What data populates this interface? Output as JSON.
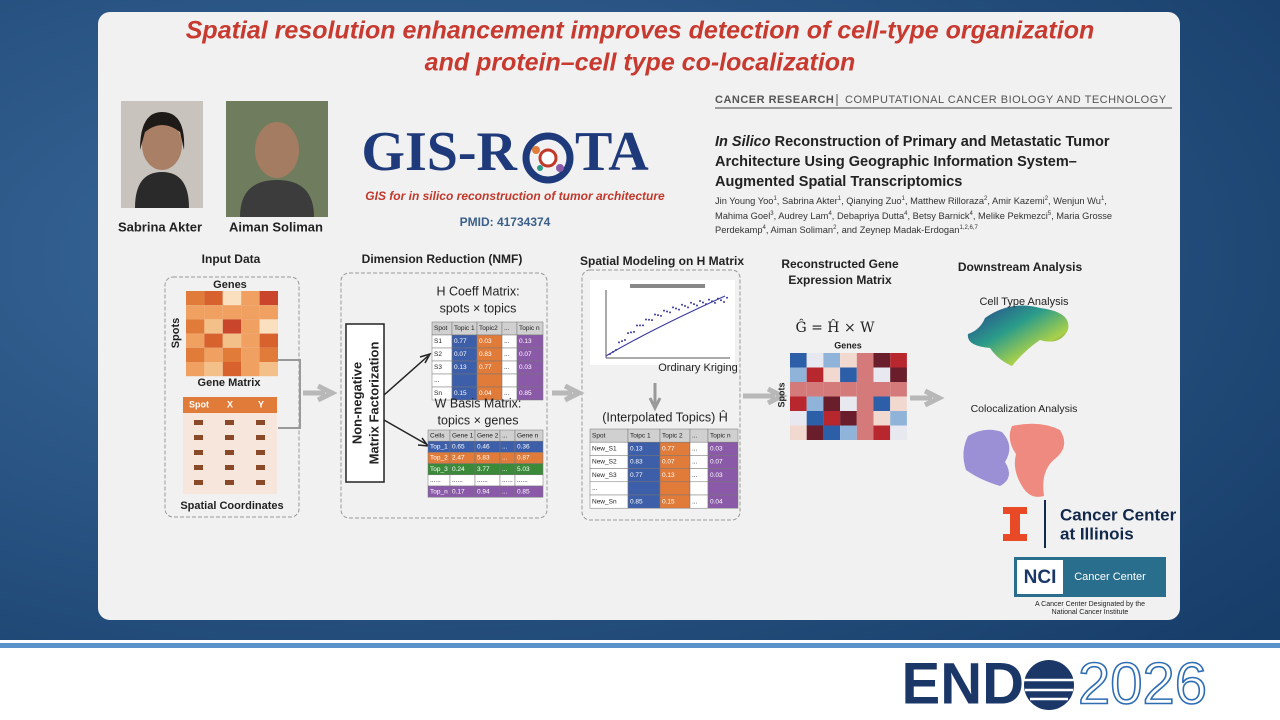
{
  "slide": {
    "title_line1": "Spatial resolution enhancement improves detection of cell-type organization",
    "title_line2": "and protein–cell type co-localization",
    "people": [
      "Sabrina Akter",
      "Aiman Soliman"
    ],
    "logo": {
      "name_left": "GIS-R",
      "name_right": "TA",
      "tagline": "GIS for in silico reconstruction of tumor architecture",
      "pmid": "PMID: 41734374"
    },
    "paper": {
      "journal": "CANCER RESEARCH",
      "section": "COMPUTATIONAL CANCER BIOLOGY AND TECHNOLOGY",
      "title_italic": "In Silico",
      "title_rest": "Reconstruction of Primary and Metastatic Tumor Architecture Using Geographic Information System–Augmented Spatial Transcriptomics",
      "authors": [
        {
          "name": "Jin Young Yoo",
          "sup": "1"
        },
        {
          "name": "Sabrina Akter",
          "sup": "1"
        },
        {
          "name": "Qianying Zuo",
          "sup": "1"
        },
        {
          "name": "Matthew Rilloraza",
          "sup": "2"
        },
        {
          "name": "Amir Kazemi",
          "sup": "2"
        },
        {
          "name": "Wenjun Wu",
          "sup": "1"
        },
        {
          "name": "Mahima Goel",
          "sup": "3"
        },
        {
          "name": "Audrey Lam",
          "sup": "4"
        },
        {
          "name": "Debapriya Dutta",
          "sup": "4"
        },
        {
          "name": "Betsy Barnick",
          "sup": "4"
        },
        {
          "name": "Melike Pekmezci",
          "sup": "5"
        },
        {
          "name": "Maria Grosse Perdekamp",
          "sup": "4"
        },
        {
          "name": "Aiman Soliman",
          "sup": "2"
        },
        {
          "name": "and Zeynep Madak-Erdogan",
          "sup": "1,2,6,7"
        }
      ]
    },
    "input": {
      "title": "Input  Data",
      "genes": "Genes",
      "spots": "Spots",
      "matrix": "Gene Matrix",
      "coord_header": [
        "Spot",
        "X",
        "Y"
      ],
      "coords": "Spatial Coordinates"
    },
    "nmf": {
      "title": "Dimension Reduction (NMF)",
      "box_line1": "Non-negative",
      "box_line2": "Matrix Factorization",
      "h_title": "H Coeff Matrix:",
      "h_sub": "spots × topics",
      "h_table": [
        [
          "Spot",
          "Topic 1",
          "Topic2",
          "...",
          "Topic n"
        ],
        [
          "S1",
          "0.77",
          "0.03",
          "...",
          "0.13"
        ],
        [
          "S2",
          "0.07",
          "0.83",
          "...",
          "0.07"
        ],
        [
          "S3",
          "0.13",
          "0.77",
          "...",
          "0.03"
        ],
        [
          "...",
          null,
          null,
          null,
          null
        ],
        [
          "Sn",
          "0.15",
          "0.04",
          "...",
          "0.85"
        ]
      ],
      "w_title": "W Basis Matrix:",
      "w_sub": "topics × genes",
      "w_table": [
        [
          "Cells",
          "Gene 1",
          "Gene 2",
          "...",
          "Gene n"
        ],
        [
          "Top_1",
          "0.65",
          "0.46",
          "...",
          "0.36"
        ],
        [
          "Top_2",
          "2.47",
          "5.83",
          "...",
          "0.87"
        ],
        [
          "Top_3",
          "0.24",
          "3.77",
          "...",
          "5.03"
        ],
        [
          "......",
          "......",
          "......",
          "......",
          "......"
        ],
        [
          "Top_n",
          "0.17",
          "0.94",
          "...",
          "0.85"
        ]
      ]
    },
    "spatial": {
      "title": "Spatial Modeling on H Matrix",
      "kriging": "Ordinary Kriging",
      "interp": "(Interpolated Topics) Ĥ",
      "table": [
        [
          "Spot",
          "Toipc 1",
          "Topic 2",
          "...",
          "Topic n"
        ],
        [
          "New_S1",
          "0.13",
          "0.77",
          "...",
          "0.03"
        ],
        [
          "New_S2",
          "0.83",
          "0.07",
          "...",
          "0.07"
        ],
        [
          "New_S3",
          "0.77",
          "0.13",
          "...",
          "0.03"
        ],
        [
          "...",
          null,
          null,
          null,
          null
        ],
        [
          "New_Sn",
          "0.85",
          "0.15",
          "...",
          "0.04"
        ]
      ]
    },
    "recon": {
      "title_line1": "Reconstructed Gene",
      "title_line2": "Expression Matrix",
      "formula": "Ĝ = Ĥ × W",
      "genes": "Genes",
      "spots": "Spots"
    },
    "downstream": {
      "title": "Downstream Analysis",
      "cell_type": "Cell Type Analysis",
      "coloc": "Colocalization Analysis"
    },
    "illinois": {
      "line1": "Cancer Center",
      "line2": "at Illinois"
    },
    "nci": {
      "badge": "NCI",
      "label": "Cancer Center",
      "note_line1": "A Cancer Center Designated by the",
      "note_line2": "National Cancer Institute"
    }
  },
  "footer": {
    "brand_left": "END",
    "brand_right": "2026"
  }
}
